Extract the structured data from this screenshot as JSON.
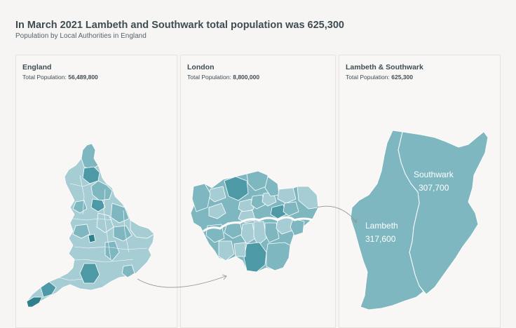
{
  "header": {
    "title": "In March 2021 Lambeth and Southwark total population was 625,300",
    "subtitle": "Population by Local Authorities in England"
  },
  "panels": [
    {
      "title": "England",
      "stat_label": "Total Population:",
      "stat_value": "56,489,800"
    },
    {
      "title": "London",
      "stat_label": "Total Population:",
      "stat_value": "8,800,000"
    },
    {
      "title": "Lambeth & Southwark",
      "stat_label": "Total Population:",
      "stat_value": "625,300"
    }
  ],
  "boroughs": [
    {
      "name": "Lambeth",
      "value": "317,600"
    },
    {
      "name": "Southwark",
      "value": "307,700"
    }
  ],
  "colors": {
    "map_light": "#a7cdd4",
    "map_mid": "#7fb7c1",
    "map_dark": "#4d9aa6",
    "map_darkest": "#2f7f8c",
    "arrow": "#8f9699"
  }
}
